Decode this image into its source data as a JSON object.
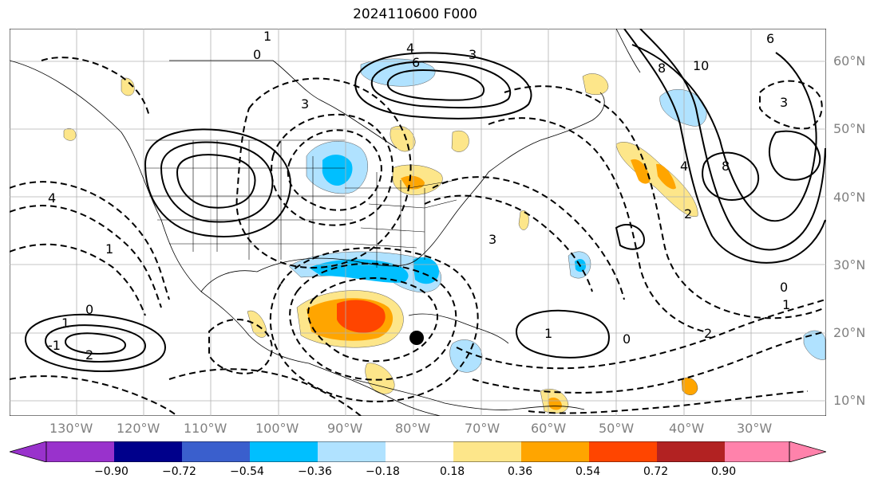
{
  "title": "2024110600 F000",
  "lon_labels": [
    "130°W",
    "120°W",
    "110°W",
    "100°W",
    "90°W",
    "80°W",
    "70°W",
    "60°W",
    "50°W",
    "40°W",
    "30°W"
  ],
  "lat_labels": [
    "60°N",
    "50°N",
    "40°N",
    "30°N",
    "20°N",
    "10°N"
  ],
  "contour_labels": [
    "1",
    "0",
    "4",
    "6",
    "3",
    "6",
    "10",
    "8",
    "3",
    "8",
    "4",
    "3",
    "4",
    "3",
    "1",
    "2",
    "0",
    "1",
    "2",
    "-1",
    "1",
    "0",
    "1",
    "2",
    "0"
  ],
  "colorbar": {
    "ticks": [
      "−0.90",
      "−0.72",
      "−0.54",
      "−0.36",
      "−0.18",
      "0.18",
      "0.36",
      "0.54",
      "0.72",
      "0.90"
    ],
    "colors": [
      "#9932cc",
      "#00008b",
      "#3a5fcd",
      "#00bfff",
      "#b0e2ff",
      "#ffffff",
      "#fde68a",
      "#ffa500",
      "#ff4500",
      "#b22222",
      "#ff82ab"
    ]
  },
  "colors": {
    "grid": "#b0b0b0",
    "label": "#808080",
    "contour": "#000000"
  }
}
